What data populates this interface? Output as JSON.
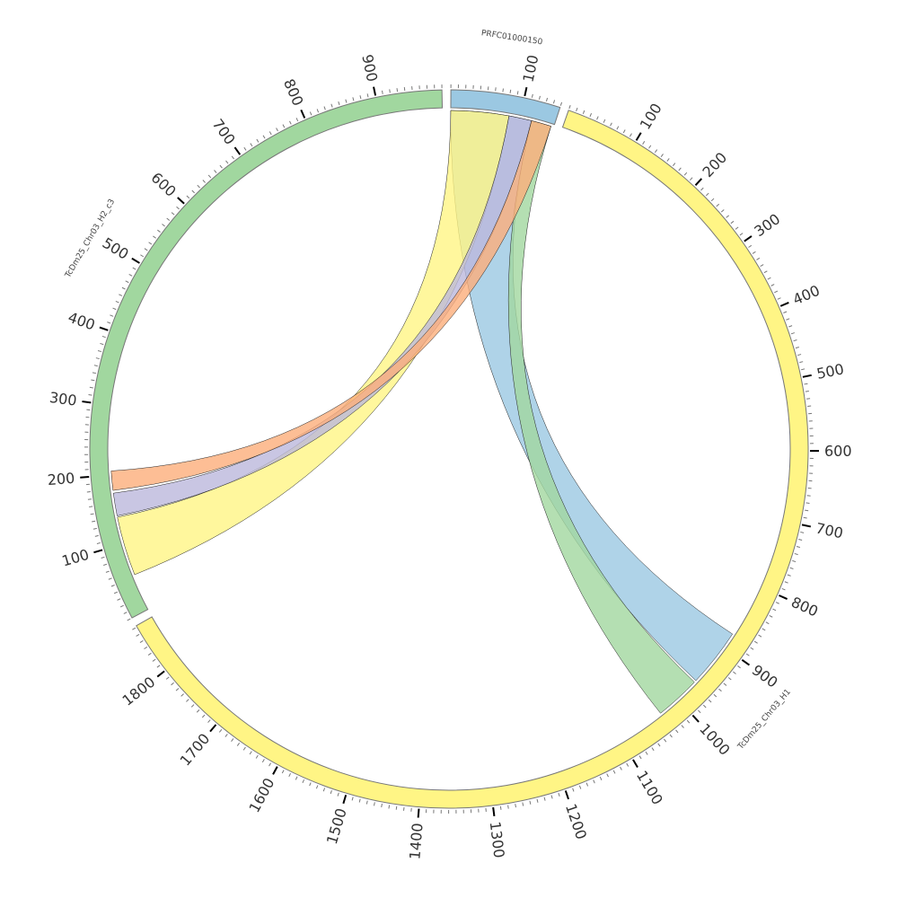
{
  "segments": [
    {
      "name": "PRFC01000150",
      "length": 150,
      "color": "#9bc8e2"
    },
    {
      "name": "TcDm25_Chr03_H1",
      "length": 1872,
      "color": "#fff585"
    },
    {
      "name": "TcDm25_Chr03_H2_c3",
      "length": 990,
      "color": "#a1d79f"
    }
  ],
  "ticks": {
    "minor_interval": 10,
    "major_interval": 100
  },
  "links": [
    {
      "source": {
        "segment": 0,
        "start": 0,
        "end": 117
      },
      "target": {
        "segment": 1,
        "start": 878,
        "end": 963
      },
      "color": "#9bc8e2"
    },
    {
      "source": {
        "segment": 0,
        "start": 0,
        "end": 84
      },
      "target": {
        "segment": 2,
        "start": 53,
        "end": 139
      },
      "color": "#fff585"
    },
    {
      "source": {
        "segment": 0,
        "start": 84,
        "end": 117
      },
      "target": {
        "segment": 2,
        "start": 141,
        "end": 174
      },
      "color": "#bcb8dc"
    },
    {
      "source": {
        "segment": 0,
        "start": 117,
        "end": 146
      },
      "target": {
        "segment": 1,
        "start": 966,
        "end": 1032
      },
      "color": "#a1d79f"
    },
    {
      "source": {
        "segment": 0,
        "start": 117,
        "end": 146
      },
      "target": {
        "segment": 2,
        "start": 178,
        "end": 206
      },
      "color": "#fdae7b"
    }
  ]
}
